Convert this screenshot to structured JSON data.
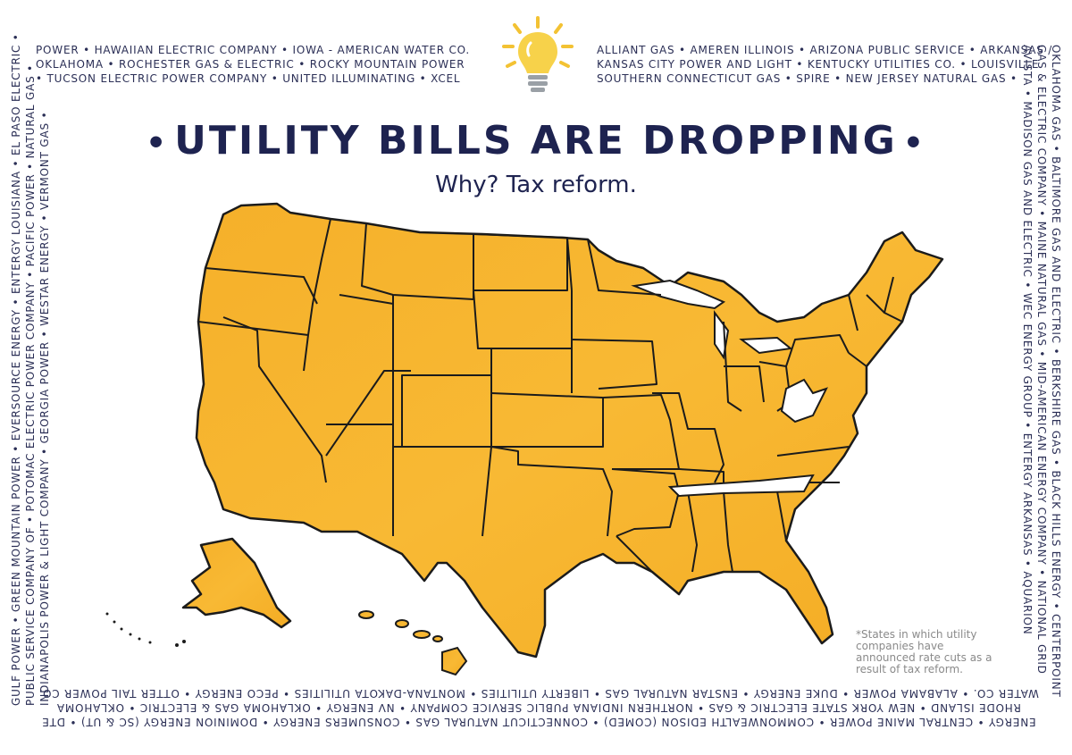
{
  "header": {
    "title": "UTILITY BILLS ARE DROPPING",
    "subtitle": "Why? Tax reform.",
    "bulb_icon": "lightbulb-icon",
    "accent_color": "#f3c233",
    "title_color": "#1e2350"
  },
  "border": {
    "top_left": [
      "POWER • HAWAIIAN ELECTRIC COMPANY • IOWA - AMERICAN WATER CO.",
      "OKLAHOMA • ROCHESTER GAS & ELECTRIC • ROCKY MOUNTAIN POWER",
      "• TUCSON ELECTRIC POWER COMPANY • UNITED ILLUMINATING • XCEL"
    ],
    "top_right": [
      "ALLIANT GAS • AMEREN ILLINOIS • ARIZONA PUBLIC SERVICE • ARKANSAS /",
      "KANSAS CITY POWER AND LIGHT • KENTUCKY UTILITIES CO. • LOUISVILLE",
      "SOUTHERN CONNECTICUT GAS • SPIRE • NEW JERSEY NATURAL GAS •"
    ],
    "left": [
      "GULF POWER • GREEN MOUNTAIN POWER • EVERSOURCE ENERGY • ENTERGY LOUISIANA • EL PASO ELECTRIC •",
      "PUBLIC SERVICE COMPANY OF • POTOMAC ELECTRIC POWER COMPANY • PACIFIC POWER • NATURAL GAS •",
      "INDIANAPOLIS POWER & LIGHT COMPANY • GEORGIA POWER • WESTAR ENERGY • VERMONT GAS •"
    ],
    "right": [
      "OKLAHOMA GAS • BALTIMORE GAS AND ELECTRIC • BERKSHIRE GAS • BLACK HILLS ENERGY • CENTERPOINT",
      "GAS & ELECTRIC COMPANY • MAINE NATURAL GAS • MID-AMERICAN ENERGY COMPANY • NATIONAL GRID",
      "AVISTA • MADISON GAS AND ELECTRIC • WEC ENERGY GROUP • ENTERGY ARKANSAS • AQUARION"
    ],
    "bottom": [
      "WATER CO. • ALABAMA POWER • DUKE ENERGY • ENSTAR NATURAL GAS • LIBERTY UTILITIES • MONTANA-DAKOTA UTILITIES • PECO ENERGY • OTTER TAIL POWER CO.",
      "RHODE ISLAND • NEW YORK STATE ELECTRIC & GAS • NORTHERN INDIANA PUBLIC SERVICE COMPANY • NV ENERGY • OKLAHOMA GAS & ELECTRIC • OKLAHOMA",
      "ENERGY • CENTRAL MAINE POWER • COMMONWEALTH EDISON (ComEd) • CONNECTICUT NATURAL GAS • CONSUMERS ENERGY • DOMINION ENERGY (SC & UT) • DTE"
    ]
  },
  "map": {
    "fill_color": "#f6b52a",
    "excluded_fill": "#ffffff",
    "outline_color": "#1b1b1b",
    "excluded_states": [
      "Tennessee",
      "West Virginia"
    ]
  },
  "note": "*States in which utility companies have announced rate cuts as a result of tax reform."
}
